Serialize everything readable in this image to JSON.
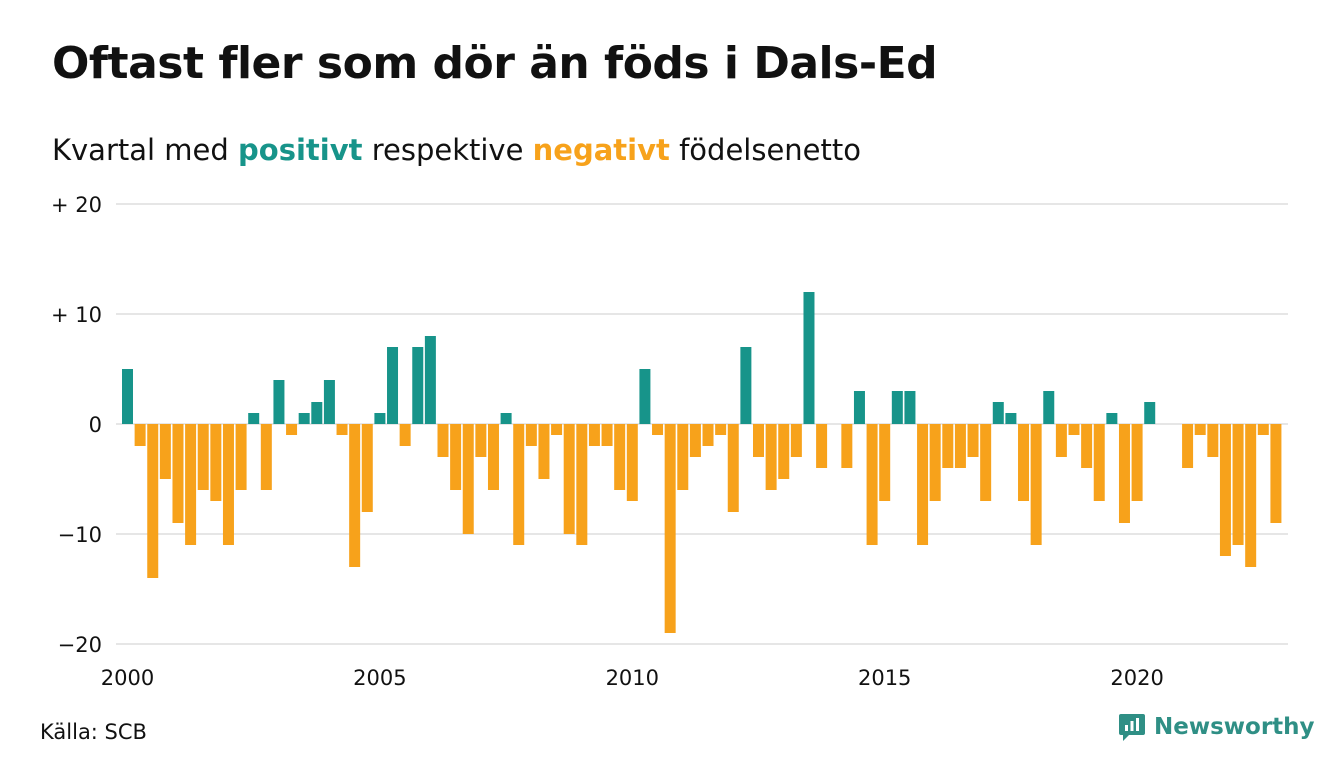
{
  "title": "Oftast fler som dör än föds i Dals-Ed",
  "subtitle": {
    "prefix": "Kvartal med",
    "positive_word": "positivt",
    "middle": "respektive",
    "negative_word": "negativt",
    "suffix": "födelsenetto"
  },
  "source": "Källa: SCB",
  "brand": {
    "name": "Newsworthy",
    "icon": "newsworthy-logo-icon"
  },
  "colors": {
    "positive": "#17948a",
    "negative": "#f7a21b",
    "grid": "#dddddd",
    "brand": "#2f8f85"
  },
  "chart_data": {
    "type": "bar",
    "title": "Oftast fler som dör än föds i Dals-Ed",
    "xlabel": "",
    "ylabel": "",
    "ylim": [
      -20,
      20
    ],
    "yticks": [
      20,
      10,
      0,
      -10,
      -20
    ],
    "ytick_labels": [
      "+ 20",
      "+ 10",
      "0",
      "−10",
      "−20"
    ],
    "xticks": [
      2000,
      2005,
      2010,
      2015,
      2020
    ],
    "xtick_labels": [
      "2000",
      "2005",
      "2010",
      "2015",
      "2020"
    ],
    "xlim": [
      "2000 Q1",
      "2023 Q1"
    ],
    "categories": [
      "2000 Q1",
      "2000 Q2",
      "2000 Q3",
      "2000 Q4",
      "2001 Q1",
      "2001 Q2",
      "2001 Q3",
      "2001 Q4",
      "2002 Q1",
      "2002 Q2",
      "2002 Q3",
      "2002 Q4",
      "2003 Q1",
      "2003 Q2",
      "2003 Q3",
      "2003 Q4",
      "2004 Q1",
      "2004 Q2",
      "2004 Q3",
      "2004 Q4",
      "2005 Q1",
      "2005 Q2",
      "2005 Q3",
      "2005 Q4",
      "2006 Q1",
      "2006 Q2",
      "2006 Q3",
      "2006 Q4",
      "2007 Q1",
      "2007 Q2",
      "2007 Q3",
      "2007 Q4",
      "2008 Q1",
      "2008 Q2",
      "2008 Q3",
      "2008 Q4",
      "2009 Q1",
      "2009 Q2",
      "2009 Q3",
      "2009 Q4",
      "2010 Q1",
      "2010 Q2",
      "2010 Q3",
      "2010 Q4",
      "2011 Q1",
      "2011 Q2",
      "2011 Q3",
      "2011 Q4",
      "2012 Q1",
      "2012 Q2",
      "2012 Q3",
      "2012 Q4",
      "2013 Q1",
      "2013 Q2",
      "2013 Q3",
      "2013 Q4",
      "2014 Q1",
      "2014 Q2",
      "2014 Q3",
      "2014 Q4",
      "2015 Q1",
      "2015 Q2",
      "2015 Q3",
      "2015 Q4",
      "2016 Q1",
      "2016 Q2",
      "2016 Q3",
      "2016 Q4",
      "2017 Q1",
      "2017 Q2",
      "2017 Q3",
      "2017 Q4",
      "2018 Q1",
      "2018 Q2",
      "2018 Q3",
      "2018 Q4",
      "2019 Q1",
      "2019 Q2",
      "2019 Q3",
      "2019 Q4",
      "2020 Q1",
      "2020 Q2",
      "2020 Q3",
      "2020 Q4",
      "2021 Q1",
      "2021 Q2",
      "2021 Q3",
      "2021 Q4",
      "2022 Q1",
      "2022 Q2",
      "2022 Q3",
      "2022 Q4",
      "2023 Q1"
    ],
    "values": [
      5,
      -2,
      -14,
      -5,
      -9,
      -11,
      -6,
      -7,
      -11,
      -6,
      1,
      -6,
      4,
      -1,
      1,
      2,
      4,
      -1,
      -13,
      -8,
      1,
      7,
      -2,
      7,
      8,
      -3,
      -6,
      -10,
      -3,
      -6,
      1,
      -11,
      -2,
      -5,
      -1,
      -10,
      -11,
      -2,
      -2,
      -6,
      -7,
      5,
      -1,
      -19,
      -6,
      -3,
      -2,
      -1,
      -8,
      7,
      -3,
      -6,
      -5,
      -3,
      12,
      -4,
      0,
      -4,
      3,
      -11,
      -7,
      3,
      3,
      -11,
      -7,
      -4,
      -4,
      -3,
      -7,
      2,
      1,
      -7,
      -11,
      3,
      -3,
      -1,
      -4,
      -7,
      1,
      -9,
      -7,
      2,
      0,
      0,
      -4,
      -1,
      -3,
      -12,
      -11,
      -13,
      -1,
      -9,
      0
    ],
    "grid": true,
    "legend": "none"
  }
}
